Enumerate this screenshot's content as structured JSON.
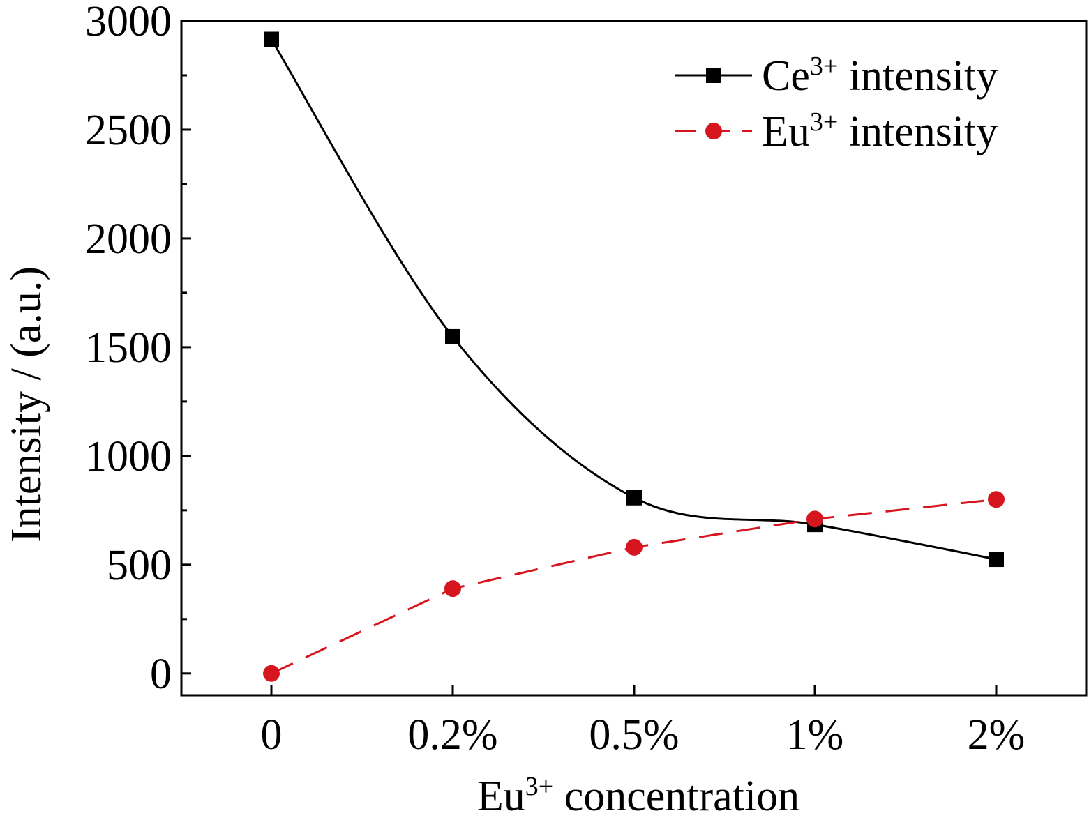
{
  "chart_data": {
    "type": "line",
    "categories": [
      "0",
      "0.2%",
      "0.5%",
      "1%",
      "2%"
    ],
    "series": [
      {
        "name": "Ce3+ intensity",
        "label_base": "Ce",
        "label_sup": "3+",
        "label_rest": " intensity",
        "values": [
          2915,
          1548,
          808,
          685,
          525
        ],
        "color": "#000000",
        "marker": "square",
        "line_style": "solid-smooth"
      },
      {
        "name": "Eu3+ intensity",
        "label_base": "Eu",
        "label_sup": "3+",
        "label_rest": " intensity",
        "values": [
          0,
          390,
          580,
          710,
          800
        ],
        "color": "#d7151f",
        "marker": "circle",
        "line_style": "dashed"
      }
    ],
    "xlabel": {
      "base": "Eu",
      "sup": "3+",
      "rest": " concentration"
    },
    "ylabel": "Intensity / (a.u.)",
    "ylim": [
      -100,
      3000
    ],
    "yticks": [
      "0",
      "500",
      "1000",
      "1500",
      "2000",
      "2500",
      "3000"
    ],
    "ytick_values": [
      0,
      500,
      1000,
      1500,
      2000,
      2500,
      3000
    ],
    "y_minor_step": 250,
    "grid": false,
    "legend_position": "top-right"
  }
}
